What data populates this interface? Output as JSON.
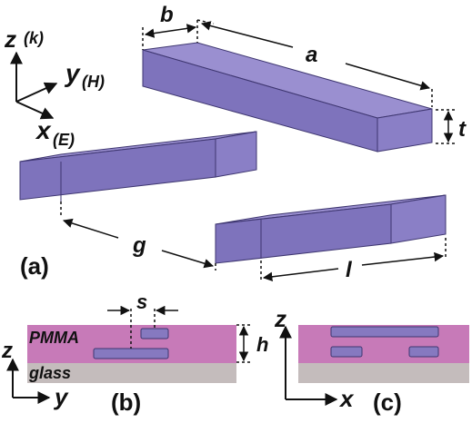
{
  "axes_a": {
    "z": "z",
    "z_sub": "(k)",
    "y": "y",
    "y_sub": "(H)",
    "x": "x",
    "x_sub": "(E)"
  },
  "dims": {
    "b": "b",
    "a": "a",
    "t": "t",
    "g": "g",
    "l": "l",
    "s": "s",
    "h": "h"
  },
  "panels": {
    "a": "(a)",
    "b": "(b)",
    "c": "(c)"
  },
  "layers": {
    "pmma": "PMMA",
    "glass": "glass"
  },
  "axes_b": {
    "z": "z",
    "y": "y"
  },
  "axes_c": {
    "z": "z",
    "x": "x"
  },
  "colors": {
    "bar_top": "#9a8fd0",
    "bar_front": "#7e73bc",
    "bar_side": "#8a7fc6",
    "bar_edge": "#3e3670",
    "pmma": "#c77ab8",
    "glass": "#c4bcbc",
    "small_bar": "#8679c0"
  }
}
